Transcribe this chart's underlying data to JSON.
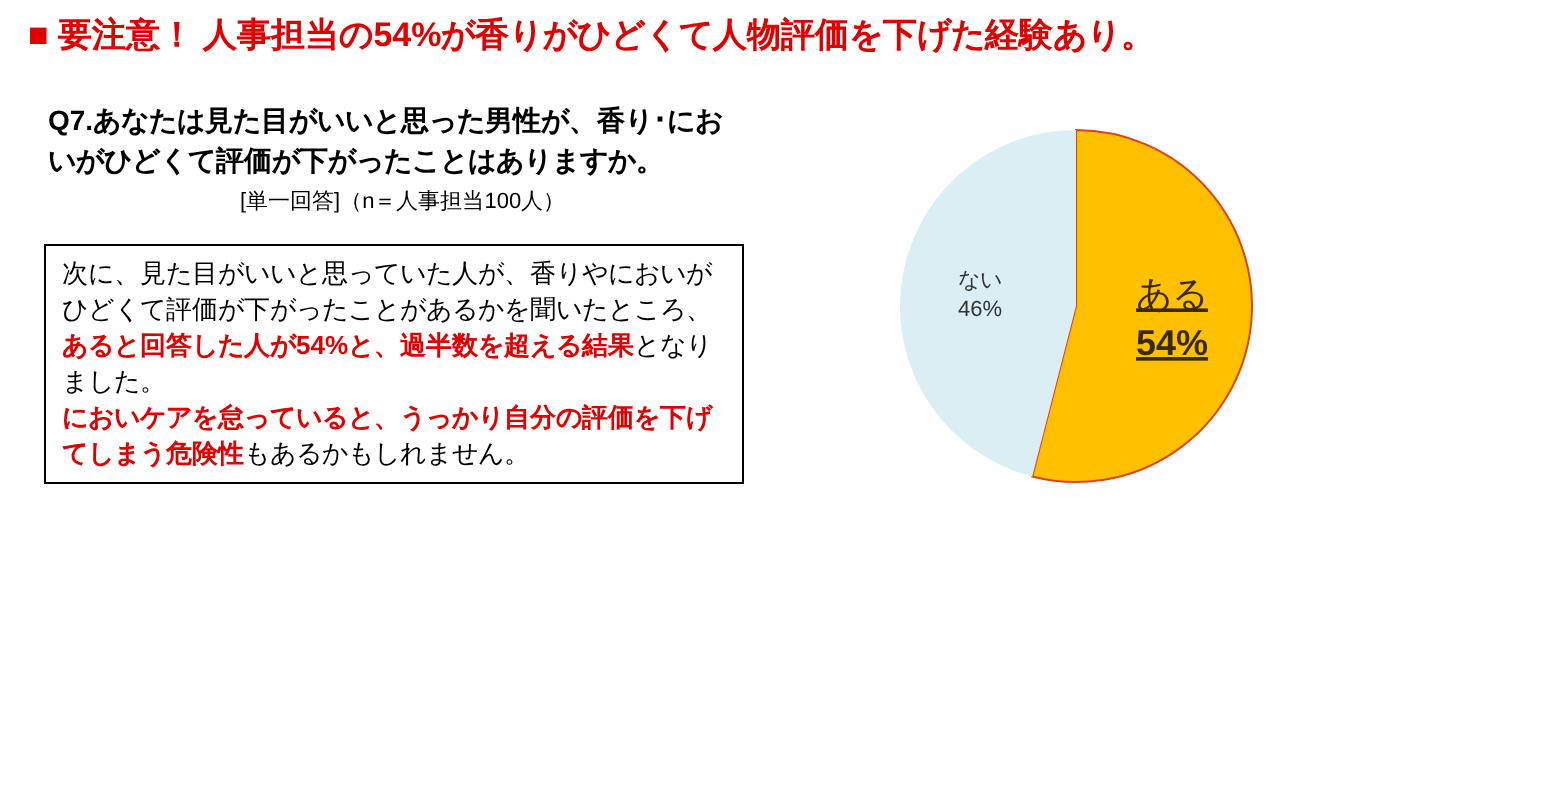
{
  "chart_data": {
    "type": "pie",
    "title": "■ 要注意！ 人事担当の54%が香りがひどくて人物評価を下げた経験あり。",
    "subtitle": "Q7.あなたは見た目がいいと思った男性が、香り･においがひどくて評価が下がったことはありますか。",
    "annotations": [
      "[単一回答]（n＝人事担当100人）",
      "次に、見た目がいいと思っていた人が、香りやにおいがひどくて評価が下がったことがあるかを聞いたところ、**あると回答した人が54%と、過半数を超える結果**となりました。",
      "**においケアを怠っていると、うっかり自分の評価を下げてしまう危険性**もあるかもしれません。"
    ],
    "categories": [
      "ある",
      "ない"
    ],
    "values": [
      54,
      46
    ],
    "value_labels": [
      "54%",
      "46%"
    ],
    "colors": [
      "#ffc000",
      "#daeef3"
    ]
  }
}
